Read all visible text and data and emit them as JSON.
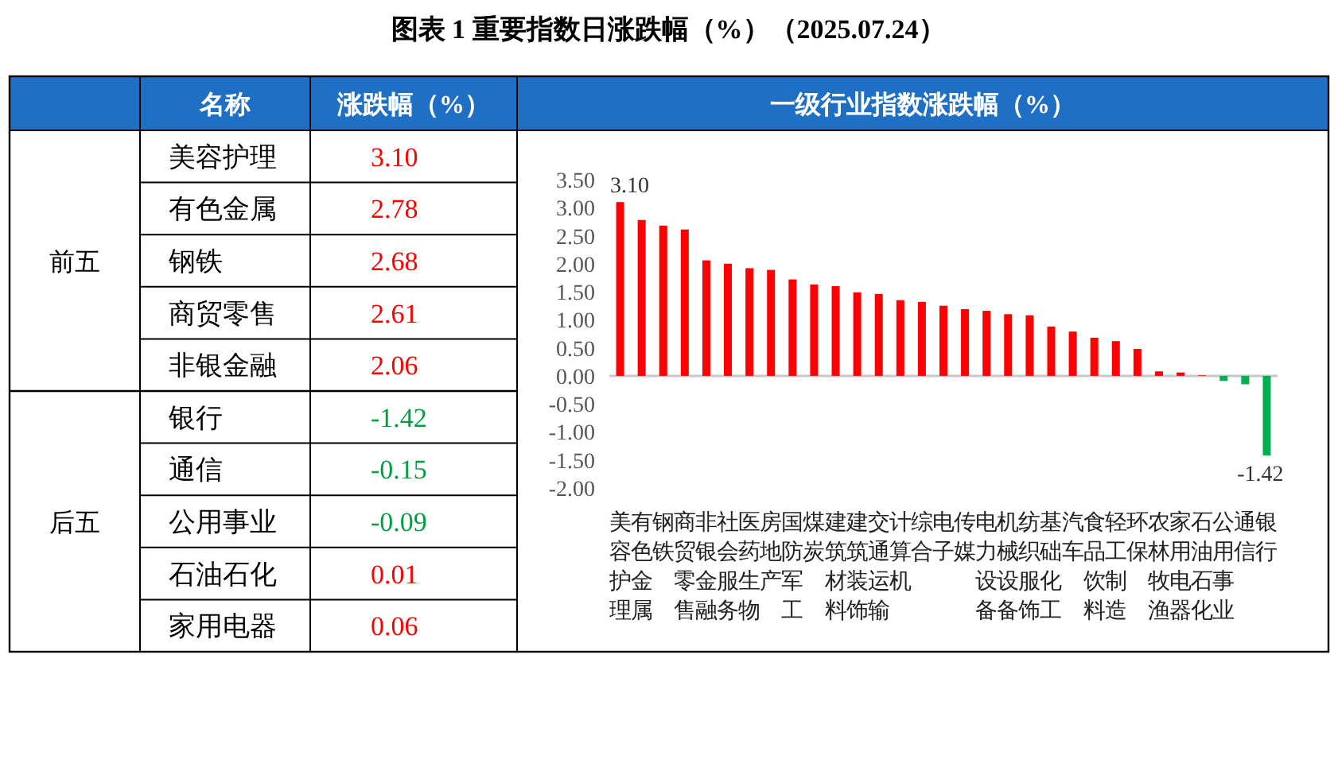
{
  "chart_data": [
    {
      "type": "other",
      "title": "图表 1  重要指数日涨跌幅（%）（2025.07.24）",
      "annotations": [
        "名称",
        "涨跌幅（%）",
        "前五",
        "后五"
      ],
      "categories": [
        "美容护理",
        "有色金属",
        "钢铁",
        "商贸零售",
        "非银金融",
        "银行",
        "通信",
        "公用事业",
        "石油石化",
        "家用电器"
      ],
      "value_labels": [
        "3.10",
        "2.78",
        "2.68",
        "2.61",
        "2.06",
        "-1.42",
        "-0.15",
        "-0.09",
        "0.01",
        "0.06"
      ],
      "colors": [
        "#ff0000",
        "#ff0000",
        "#ff0000",
        "#ff0000",
        "#ff0000",
        "#00a040",
        "#00a040",
        "#00a040",
        "#ff0000",
        "#ff0000"
      ]
    },
    {
      "type": "bar",
      "title": "一级行业指数涨跌幅（%）",
      "categories": [
        "美容护理",
        "有色金属",
        "钢铁",
        "商贸零售",
        "非银金融",
        "社会服务",
        "医药生物",
        "房地产",
        "国防军工",
        "煤炭",
        "建筑材料",
        "建筑装饰",
        "交通运输",
        "计算机",
        "综合",
        "电子",
        "传媒",
        "电力设备",
        "机械设备",
        "纺织服饰",
        "基础化工",
        "汽车",
        "食品饮料",
        "轻工制造",
        "环保",
        "农林牧渔",
        "家用电器",
        "石油石化",
        "公用事业",
        "通信",
        "银行"
      ],
      "values": [
        3.1,
        2.78,
        2.68,
        2.61,
        2.06,
        2.0,
        1.92,
        1.89,
        1.72,
        1.63,
        1.6,
        1.49,
        1.46,
        1.35,
        1.32,
        1.25,
        1.19,
        1.16,
        1.1,
        1.08,
        0.88,
        0.79,
        0.68,
        0.62,
        0.48,
        0.08,
        0.06,
        0.01,
        -0.09,
        -0.15,
        -1.42
      ],
      "colors": [
        "#ff0000",
        "#ff0000",
        "#ff0000",
        "#ff0000",
        "#ff0000",
        "#ff0000",
        "#ff0000",
        "#ff0000",
        "#ff0000",
        "#ff0000",
        "#ff0000",
        "#ff0000",
        "#ff0000",
        "#ff0000",
        "#ff0000",
        "#ff0000",
        "#ff0000",
        "#ff0000",
        "#ff0000",
        "#ff0000",
        "#ff0000",
        "#ff0000",
        "#ff0000",
        "#ff0000",
        "#ff0000",
        "#ff0000",
        "#ff0000",
        "#ff0000",
        "#00b050",
        "#00b050",
        "#00b050"
      ],
      "value_labels": [
        "3.10",
        null,
        null,
        null,
        null,
        null,
        null,
        null,
        null,
        null,
        null,
        null,
        null,
        null,
        null,
        null,
        null,
        null,
        null,
        null,
        null,
        null,
        null,
        null,
        null,
        null,
        null,
        null,
        null,
        null,
        "-1.42"
      ],
      "ylim": [
        -2,
        3.5
      ],
      "yticks": [
        {
          "value": 3.5,
          "label": "3.50"
        },
        {
          "value": 3,
          "label": "3.00"
        },
        {
          "value": 2.5,
          "label": "2.50"
        },
        {
          "value": 2,
          "label": "2.00"
        },
        {
          "value": 1.5,
          "label": "1.50"
        },
        {
          "value": 1,
          "label": "1.00"
        },
        {
          "value": 0.5,
          "label": "0.50"
        },
        {
          "value": 0,
          "label": "0.00"
        },
        {
          "value": -0.5,
          "label": "-0.50"
        },
        {
          "value": -1,
          "label": "-1.00"
        },
        {
          "value": -1.5,
          "label": "-1.50"
        },
        {
          "value": -2,
          "label": "-2.00"
        }
      ]
    }
  ]
}
